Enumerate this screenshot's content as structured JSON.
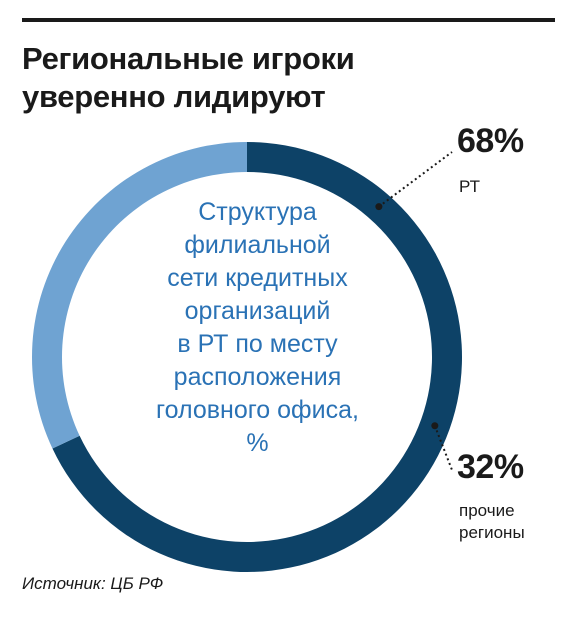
{
  "title_lines": [
    "Региональные игроки",
    "уверенно лидируют"
  ],
  "source": "Источник: ЦБ РФ",
  "chart_data": {
    "type": "pie",
    "title": "Региональные игроки уверенно лидируют",
    "subtitle_lines": [
      "Структура",
      "филиальной",
      "сети кредитных",
      "организаций",
      "в РТ по месту",
      "расположения",
      "головного офиса,",
      "%"
    ],
    "slices": [
      {
        "label_lines": [
          "РТ"
        ],
        "value": 68,
        "value_label": "68%",
        "color": "#0d4267"
      },
      {
        "label_lines": [
          "прочие",
          "регионы"
        ],
        "value": 32,
        "value_label": "32%",
        "color": "#6fa3d2"
      }
    ],
    "start_angle_deg": 0,
    "direction": "clockwise",
    "legend": "none"
  }
}
